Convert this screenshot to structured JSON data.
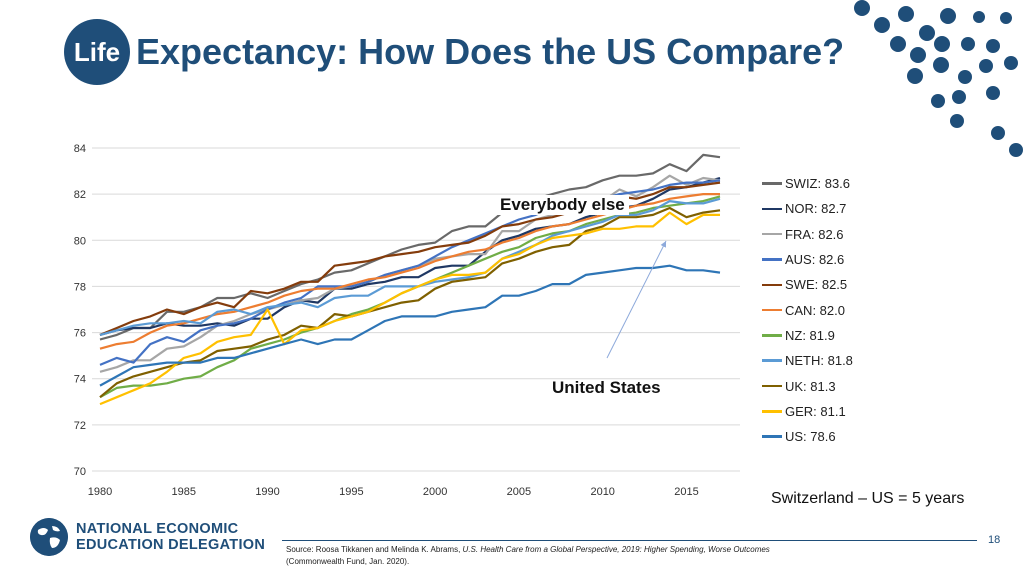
{
  "title": {
    "badge": "Life",
    "text": "Expectancy: How Does the US Compare?"
  },
  "chart_data": {
    "type": "line",
    "title": "Life Expectancy: How Does the US Compare?",
    "xlabel": "",
    "ylabel": "",
    "xlim": [
      1980,
      2017
    ],
    "ylim": [
      70,
      84
    ],
    "x_ticks": [
      "1980",
      "1985",
      "1990",
      "1995",
      "2000",
      "2005",
      "2010",
      "2015"
    ],
    "y_ticks": [
      "70",
      "72",
      "74",
      "76",
      "78",
      "80",
      "82",
      "84"
    ],
    "grid": "horizontal",
    "x": [
      1980,
      1981,
      1982,
      1983,
      1984,
      1985,
      1986,
      1987,
      1988,
      1989,
      1990,
      1991,
      1992,
      1993,
      1994,
      1995,
      1996,
      1997,
      1998,
      1999,
      2000,
      2001,
      2002,
      2003,
      2004,
      2005,
      2006,
      2007,
      2008,
      2009,
      2010,
      2011,
      2012,
      2013,
      2014,
      2015,
      2016,
      2017
    ],
    "series": [
      {
        "name": "SWIZ",
        "legend": "SWIZ: 83.6",
        "color": "#696969",
        "values": [
          75.7,
          75.9,
          76.2,
          76.2,
          76.9,
          76.9,
          77.1,
          77.5,
          77.5,
          77.7,
          77.5,
          77.8,
          78.1,
          78.3,
          78.6,
          78.7,
          79.0,
          79.3,
          79.6,
          79.8,
          79.9,
          80.4,
          80.6,
          80.6,
          81.2,
          81.4,
          81.8,
          82.0,
          82.2,
          82.3,
          82.6,
          82.8,
          82.8,
          82.9,
          83.3,
          83.0,
          83.7,
          83.6
        ]
      },
      {
        "name": "NOR",
        "legend": "NOR: 82.7",
        "color": "#1f3864",
        "values": [
          75.9,
          76.1,
          76.2,
          76.2,
          76.4,
          76.3,
          76.3,
          76.4,
          76.3,
          76.6,
          76.6,
          77.1,
          77.4,
          77.3,
          77.9,
          77.9,
          78.1,
          78.2,
          78.4,
          78.4,
          78.8,
          78.9,
          78.9,
          79.5,
          80.0,
          80.2,
          80.5,
          80.6,
          80.7,
          81.0,
          81.2,
          81.4,
          81.5,
          81.8,
          82.2,
          82.3,
          82.5,
          82.7
        ]
      },
      {
        "name": "FRA",
        "legend": "FRA: 82.6",
        "color": "#a6a6a6",
        "values": [
          74.3,
          74.5,
          74.8,
          74.8,
          75.3,
          75.4,
          75.8,
          76.3,
          76.5,
          76.8,
          77.0,
          77.2,
          77.4,
          77.5,
          77.9,
          78.0,
          78.2,
          78.5,
          78.7,
          78.9,
          79.2,
          79.3,
          79.4,
          79.4,
          80.4,
          80.4,
          80.9,
          81.1,
          81.2,
          81.4,
          81.7,
          82.2,
          81.9,
          82.3,
          82.8,
          82.4,
          82.7,
          82.6
        ]
      },
      {
        "name": "AUS",
        "legend": "AUS: 82.6",
        "color": "#4472c4",
        "values": [
          74.6,
          74.9,
          74.7,
          75.5,
          75.8,
          75.6,
          76.1,
          76.3,
          76.4,
          76.6,
          77.0,
          77.3,
          77.5,
          78.0,
          78.0,
          78.0,
          78.2,
          78.5,
          78.7,
          78.9,
          79.3,
          79.7,
          80.0,
          80.3,
          80.6,
          80.9,
          81.1,
          81.4,
          81.5,
          81.6,
          81.8,
          82.0,
          82.1,
          82.2,
          82.4,
          82.5,
          82.5,
          82.6
        ]
      },
      {
        "name": "SWE",
        "legend": "SWE: 82.5",
        "color": "#843c0c",
        "values": [
          75.9,
          76.2,
          76.5,
          76.7,
          77.0,
          76.8,
          77.1,
          77.3,
          77.1,
          77.8,
          77.7,
          77.9,
          78.2,
          78.2,
          78.9,
          79.0,
          79.1,
          79.3,
          79.4,
          79.5,
          79.7,
          79.8,
          79.9,
          80.2,
          80.6,
          80.7,
          80.9,
          81.0,
          81.2,
          81.4,
          81.6,
          81.9,
          81.8,
          82.0,
          82.3,
          82.3,
          82.4,
          82.5
        ]
      },
      {
        "name": "CAN",
        "legend": "CAN: 82.0",
        "color": "#ed7d31",
        "values": [
          75.3,
          75.5,
          75.6,
          76.0,
          76.3,
          76.4,
          76.6,
          76.8,
          76.9,
          77.1,
          77.3,
          77.6,
          77.8,
          77.9,
          77.9,
          78.1,
          78.3,
          78.4,
          78.6,
          78.8,
          79.1,
          79.3,
          79.5,
          79.6,
          79.9,
          80.1,
          80.4,
          80.6,
          80.7,
          80.9,
          81.1,
          81.3,
          81.5,
          81.6,
          81.8,
          81.9,
          82.0,
          82.0
        ]
      },
      {
        "name": "NZ",
        "legend": "NZ: 81.9",
        "color": "#70ad47",
        "values": [
          73.2,
          73.6,
          73.7,
          73.7,
          73.8,
          74.0,
          74.1,
          74.5,
          74.8,
          75.3,
          75.5,
          75.7,
          76.0,
          76.2,
          76.5,
          76.8,
          77.0,
          77.3,
          77.7,
          78.0,
          78.3,
          78.6,
          78.9,
          79.2,
          79.5,
          79.7,
          80.1,
          80.3,
          80.4,
          80.7,
          80.9,
          81.1,
          81.2,
          81.4,
          81.5,
          81.6,
          81.7,
          81.9
        ]
      },
      {
        "name": "NETH",
        "legend": "NETH: 81.8",
        "color": "#5b9bd5",
        "values": [
          75.9,
          76.1,
          76.3,
          76.4,
          76.4,
          76.5,
          76.4,
          76.9,
          77.0,
          76.8,
          77.1,
          77.2,
          77.3,
          77.1,
          77.5,
          77.6,
          77.6,
          78.0,
          78.0,
          78.0,
          78.2,
          78.3,
          78.4,
          78.6,
          79.2,
          79.5,
          79.8,
          80.2,
          80.4,
          80.6,
          80.8,
          81.1,
          81.1,
          81.3,
          81.7,
          81.6,
          81.6,
          81.8
        ]
      },
      {
        "name": "UK",
        "legend": "UK: 81.3",
        "color": "#7f6000",
        "values": [
          73.2,
          73.8,
          74.1,
          74.3,
          74.5,
          74.7,
          74.8,
          75.2,
          75.3,
          75.4,
          75.7,
          75.9,
          76.3,
          76.2,
          76.8,
          76.7,
          76.9,
          77.1,
          77.3,
          77.4,
          77.9,
          78.2,
          78.3,
          78.4,
          79.0,
          79.2,
          79.5,
          79.7,
          79.8,
          80.4,
          80.6,
          81.0,
          81.0,
          81.1,
          81.4,
          81.0,
          81.2,
          81.3
        ]
      },
      {
        "name": "GER",
        "legend": "GER: 81.1",
        "color": "#ffc000",
        "values": [
          72.9,
          73.2,
          73.5,
          73.8,
          74.3,
          74.9,
          75.1,
          75.6,
          75.8,
          75.9,
          77.0,
          75.5,
          76.1,
          76.2,
          76.5,
          76.7,
          76.9,
          77.3,
          77.7,
          78.0,
          78.3,
          78.5,
          78.5,
          78.6,
          79.2,
          79.4,
          79.8,
          80.1,
          80.2,
          80.3,
          80.5,
          80.5,
          80.6,
          80.6,
          81.2,
          80.7,
          81.1,
          81.1
        ]
      },
      {
        "name": "US",
        "legend": "US: 78.6",
        "color": "#2e75b6",
        "values": [
          73.7,
          74.1,
          74.5,
          74.6,
          74.7,
          74.7,
          74.7,
          74.9,
          74.9,
          75.1,
          75.3,
          75.5,
          75.7,
          75.5,
          75.7,
          75.7,
          76.1,
          76.5,
          76.7,
          76.7,
          76.7,
          76.9,
          77.0,
          77.1,
          77.6,
          77.6,
          77.8,
          78.1,
          78.1,
          78.5,
          78.6,
          78.7,
          78.8,
          78.8,
          78.9,
          78.7,
          78.7,
          78.6
        ]
      }
    ],
    "annotations": [
      {
        "text": "Everybody else"
      },
      {
        "text": "United States"
      }
    ]
  },
  "note": "Switzerland – US = 5 years",
  "logo": {
    "line1": "NATIONAL ECONOMIC",
    "line2": "EDUCATION DELEGATION"
  },
  "page_number": "18",
  "source": {
    "prefix": "Source: Roosa Tikkanen and Melinda K. Abrams, ",
    "italic": "U.S. Health Care from a Global Perspective, 2019: Higher Spending, Worse Outcomes",
    "suffix": "(Commonwealth Fund, Jan. 2020)."
  },
  "decor_color": "#1f4e79"
}
